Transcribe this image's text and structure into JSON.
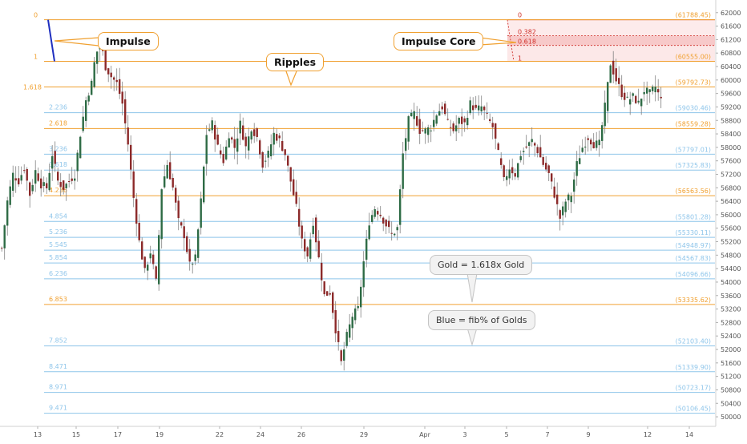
{
  "colors": {
    "gold": "#f0a030",
    "blue": "#8ec5ea",
    "red": "#d0302a",
    "up": "#2e6b45",
    "down": "#8c2a2a",
    "wick": "#808080",
    "axis": "#555555",
    "impulse": "#1f2fbf"
  },
  "chart_data": {
    "type": "candlestick",
    "title": "",
    "x_ticks": [
      "13",
      "15",
      "17",
      "19",
      "22",
      "24",
      "26",
      "29",
      "Apr",
      "3",
      "5",
      "7",
      "9",
      "12",
      "14"
    ],
    "y_ticks": [
      "62000",
      "61600",
      "61200",
      "60800",
      "60400",
      "60000",
      "59600",
      "59200",
      "58800",
      "58400",
      "58000",
      "57600",
      "57200",
      "56800",
      "56400",
      "56000",
      "55600",
      "55200",
      "54800",
      "54400",
      "54000",
      "53600",
      "53200",
      "52800",
      "52400",
      "52000",
      "51600",
      "51200",
      "50800",
      "50400",
      "50000"
    ],
    "ylim": [
      49800,
      62400
    ],
    "fib_levels": [
      {
        "ratio": "0",
        "value": 61788.45,
        "label": "(61788.45)",
        "kind": "gold"
      },
      {
        "ratio": "1",
        "value": 60555.0,
        "label": "(60555.00)",
        "kind": "gold"
      },
      {
        "ratio": "1.618",
        "value": 59792.73,
        "label": "(59792.73)",
        "kind": "gold"
      },
      {
        "ratio": "2.236",
        "value": 59030.46,
        "label": "(59030.46)",
        "kind": "blue"
      },
      {
        "ratio": "2.618",
        "value": 58559.28,
        "label": "(58559.28)",
        "kind": "gold"
      },
      {
        "ratio": "3.236",
        "value": 57797.01,
        "label": "(57797.01)",
        "kind": "blue"
      },
      {
        "ratio": "3.618",
        "value": 57325.83,
        "label": "(57325.83)",
        "kind": "blue"
      },
      {
        "ratio": "4.236",
        "value": 56563.56,
        "label": "(56563.56)",
        "kind": "gold"
      },
      {
        "ratio": "4.854",
        "value": 55801.28,
        "label": "(55801.28)",
        "kind": "blue"
      },
      {
        "ratio": "5.236",
        "value": 55330.11,
        "label": "(55330.11)",
        "kind": "blue"
      },
      {
        "ratio": "5.545",
        "value": 54948.97,
        "label": "(54948.97)",
        "kind": "blue"
      },
      {
        "ratio": "5.854",
        "value": 54567.83,
        "label": "(54567.83)",
        "kind": "blue"
      },
      {
        "ratio": "6.236",
        "value": 54096.66,
        "label": "(54096.66)",
        "kind": "blue"
      },
      {
        "ratio": "6.853",
        "value": 53335.62,
        "label": "(53335.62)",
        "kind": "gold"
      },
      {
        "ratio": "7.852",
        "value": 52103.4,
        "label": "(52103.40)",
        "kind": "blue"
      },
      {
        "ratio": "8.471",
        "value": 51339.9,
        "label": "(51339.90)",
        "kind": "blue"
      },
      {
        "ratio": "8.971",
        "value": 50723.17,
        "label": "(50723.17)",
        "kind": "blue"
      },
      {
        "ratio": "9.471",
        "value": 50106.45,
        "label": "(50106.45)",
        "kind": "blue"
      }
    ],
    "core_levels": [
      {
        "ratio": "0",
        "value": 61788.45
      },
      {
        "ratio": "0.382",
        "value": 61317.26
      },
      {
        "ratio": "0.618",
        "value": 61026.18
      },
      {
        "ratio": "1",
        "value": 60555.0
      }
    ],
    "close_path": [
      [
        0,
        55000
      ],
      [
        2,
        56400
      ],
      [
        4,
        57200
      ],
      [
        6,
        57000
      ],
      [
        8,
        57400
      ],
      [
        10,
        56600
      ],
      [
        12,
        57300
      ],
      [
        14,
        56900
      ],
      [
        16,
        56800
      ],
      [
        18,
        57800
      ],
      [
        20,
        57000
      ],
      [
        22,
        56800
      ],
      [
        24,
        57000
      ],
      [
        26,
        57200
      ],
      [
        28,
        58400
      ],
      [
        30,
        59400
      ],
      [
        32,
        59900
      ],
      [
        33,
        60500
      ],
      [
        35,
        61200
      ],
      [
        37,
        60400
      ],
      [
        39,
        60100
      ],
      [
        41,
        59900
      ],
      [
        43,
        59300
      ],
      [
        45,
        58100
      ],
      [
        47,
        56500
      ],
      [
        49,
        55200
      ],
      [
        51,
        54300
      ],
      [
        53,
        54900
      ],
      [
        55,
        54000
      ],
      [
        57,
        56800
      ],
      [
        59,
        57500
      ],
      [
        61,
        56800
      ],
      [
        63,
        55800
      ],
      [
        65,
        55400
      ],
      [
        67,
        54500
      ],
      [
        69,
        54700
      ],
      [
        71,
        56400
      ],
      [
        73,
        58400
      ],
      [
        75,
        58700
      ],
      [
        77,
        58000
      ],
      [
        79,
        57600
      ],
      [
        81,
        58400
      ],
      [
        83,
        58000
      ],
      [
        85,
        58700
      ],
      [
        87,
        58000
      ],
      [
        89,
        58600
      ],
      [
        91,
        58300
      ],
      [
        93,
        57500
      ],
      [
        95,
        57800
      ],
      [
        97,
        58400
      ],
      [
        99,
        58200
      ],
      [
        101,
        57800
      ],
      [
        103,
        57000
      ],
      [
        105,
        56200
      ],
      [
        107,
        55200
      ],
      [
        109,
        54800
      ],
      [
        111,
        55800
      ],
      [
        113,
        54700
      ],
      [
        115,
        53600
      ],
      [
        117,
        53700
      ],
      [
        119,
        52600
      ],
      [
        121,
        51600
      ],
      [
        123,
        52400
      ],
      [
        125,
        53000
      ],
      [
        127,
        53200
      ],
      [
        129,
        54600
      ],
      [
        131,
        55800
      ],
      [
        133,
        56200
      ],
      [
        135,
        56000
      ],
      [
        137,
        55700
      ],
      [
        139,
        55400
      ],
      [
        141,
        55600
      ],
      [
        143,
        57800
      ],
      [
        145,
        58800
      ],
      [
        147,
        59000
      ],
      [
        149,
        58500
      ],
      [
        151,
        58500
      ],
      [
        153,
        58600
      ],
      [
        155,
        59000
      ],
      [
        157,
        59200
      ],
      [
        159,
        58700
      ],
      [
        161,
        58500
      ],
      [
        163,
        58800
      ],
      [
        165,
        58700
      ],
      [
        167,
        59300
      ],
      [
        169,
        59100
      ],
      [
        171,
        59200
      ],
      [
        173,
        58900
      ],
      [
        175,
        58600
      ],
      [
        177,
        57800
      ],
      [
        179,
        57000
      ],
      [
        181,
        57400
      ],
      [
        183,
        57200
      ],
      [
        185,
        57800
      ],
      [
        187,
        58000
      ],
      [
        189,
        58200
      ],
      [
        191,
        57900
      ],
      [
        193,
        57500
      ],
      [
        195,
        57200
      ],
      [
        197,
        56600
      ],
      [
        199,
        55900
      ],
      [
        201,
        56400
      ],
      [
        203,
        56600
      ],
      [
        205,
        57500
      ],
      [
        207,
        58000
      ],
      [
        209,
        58300
      ],
      [
        211,
        58100
      ],
      [
        213,
        58100
      ],
      [
        215,
        59200
      ],
      [
        217,
        60500
      ],
      [
        219,
        60000
      ],
      [
        221,
        59600
      ],
      [
        223,
        59400
      ],
      [
        225,
        59500
      ],
      [
        227,
        59300
      ],
      [
        229,
        59700
      ],
      [
        231,
        59600
      ],
      [
        233,
        59800
      ],
      [
        235,
        59400
      ],
      [
        237,
        59000
      ]
    ],
    "callouts": {
      "impulse": "Impulse",
      "ripples": "Ripples",
      "impulse_core": "Impulse Core",
      "gold_note": "Gold = 1.618x Gold",
      "blue_note": "Blue = fib% of Golds"
    }
  }
}
